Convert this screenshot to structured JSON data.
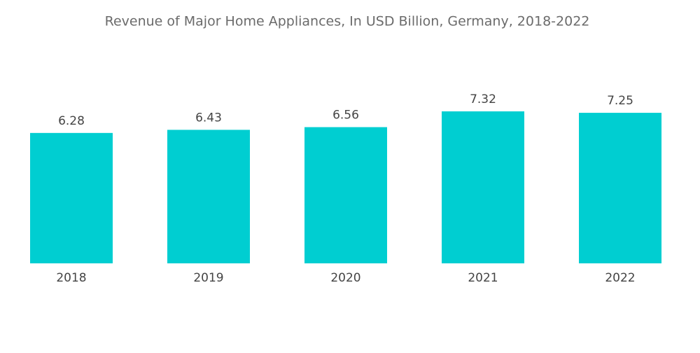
{
  "chart_data": {
    "type": "bar",
    "title": "Revenue of Major Home Appliances, In USD Billion, Germany, 2018-2022",
    "categories": [
      "2018",
      "2019",
      "2020",
      "2021",
      "2022"
    ],
    "values": [
      6.28,
      6.43,
      6.56,
      7.32,
      7.25
    ],
    "color": "#00ced1"
  }
}
